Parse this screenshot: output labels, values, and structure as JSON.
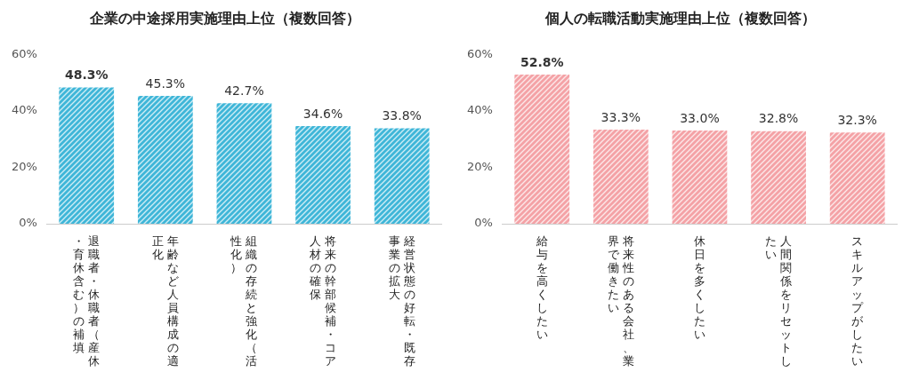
{
  "chart_data": [
    {
      "type": "bar",
      "title": "企業の中途採用実施理由上位（複数回答）",
      "categories": [
        "退職者・休職者（産休・育休含む）の補填",
        "年齢など人員構成の適正化",
        "組織の存続と強化（活性化）",
        "将来の幹部候補・コア人材の確保",
        "経営状態の好転・既存事業の拡大"
      ],
      "values": [
        48.3,
        45.3,
        42.7,
        34.6,
        33.8
      ],
      "value_labels": [
        "48.3%",
        "45.3%",
        "42.7%",
        "34.6%",
        "33.8%"
      ],
      "color": "#3fb6d8",
      "ylim": [
        0,
        60
      ],
      "yticks": [
        {
          "value": 0,
          "label": "0%"
        },
        {
          "value": 20,
          "label": "20%"
        },
        {
          "value": 40,
          "label": "40%"
        },
        {
          "value": 60,
          "label": "60%"
        }
      ],
      "grid": false,
      "data_labels": true
    },
    {
      "type": "bar",
      "title": "個人の転職活動実施理由上位（複数回答）",
      "categories": [
        "給与を高くしたい",
        "将来性のある会社、業界で働きたい",
        "休日を多くしたい",
        "人間関係をリセットしたい",
        "スキルアップがしたい"
      ],
      "values": [
        52.8,
        33.3,
        33.0,
        32.8,
        32.3
      ],
      "value_labels": [
        "52.8%",
        "33.3%",
        "33.0%",
        "32.8%",
        "32.3%"
      ],
      "color": "#f4a2a6",
      "ylim": [
        0,
        60
      ],
      "yticks": [
        {
          "value": 0,
          "label": "0%"
        },
        {
          "value": 20,
          "label": "20%"
        },
        {
          "value": 40,
          "label": "40%"
        },
        {
          "value": 60,
          "label": "60%"
        }
      ],
      "grid": false,
      "data_labels": true
    }
  ]
}
